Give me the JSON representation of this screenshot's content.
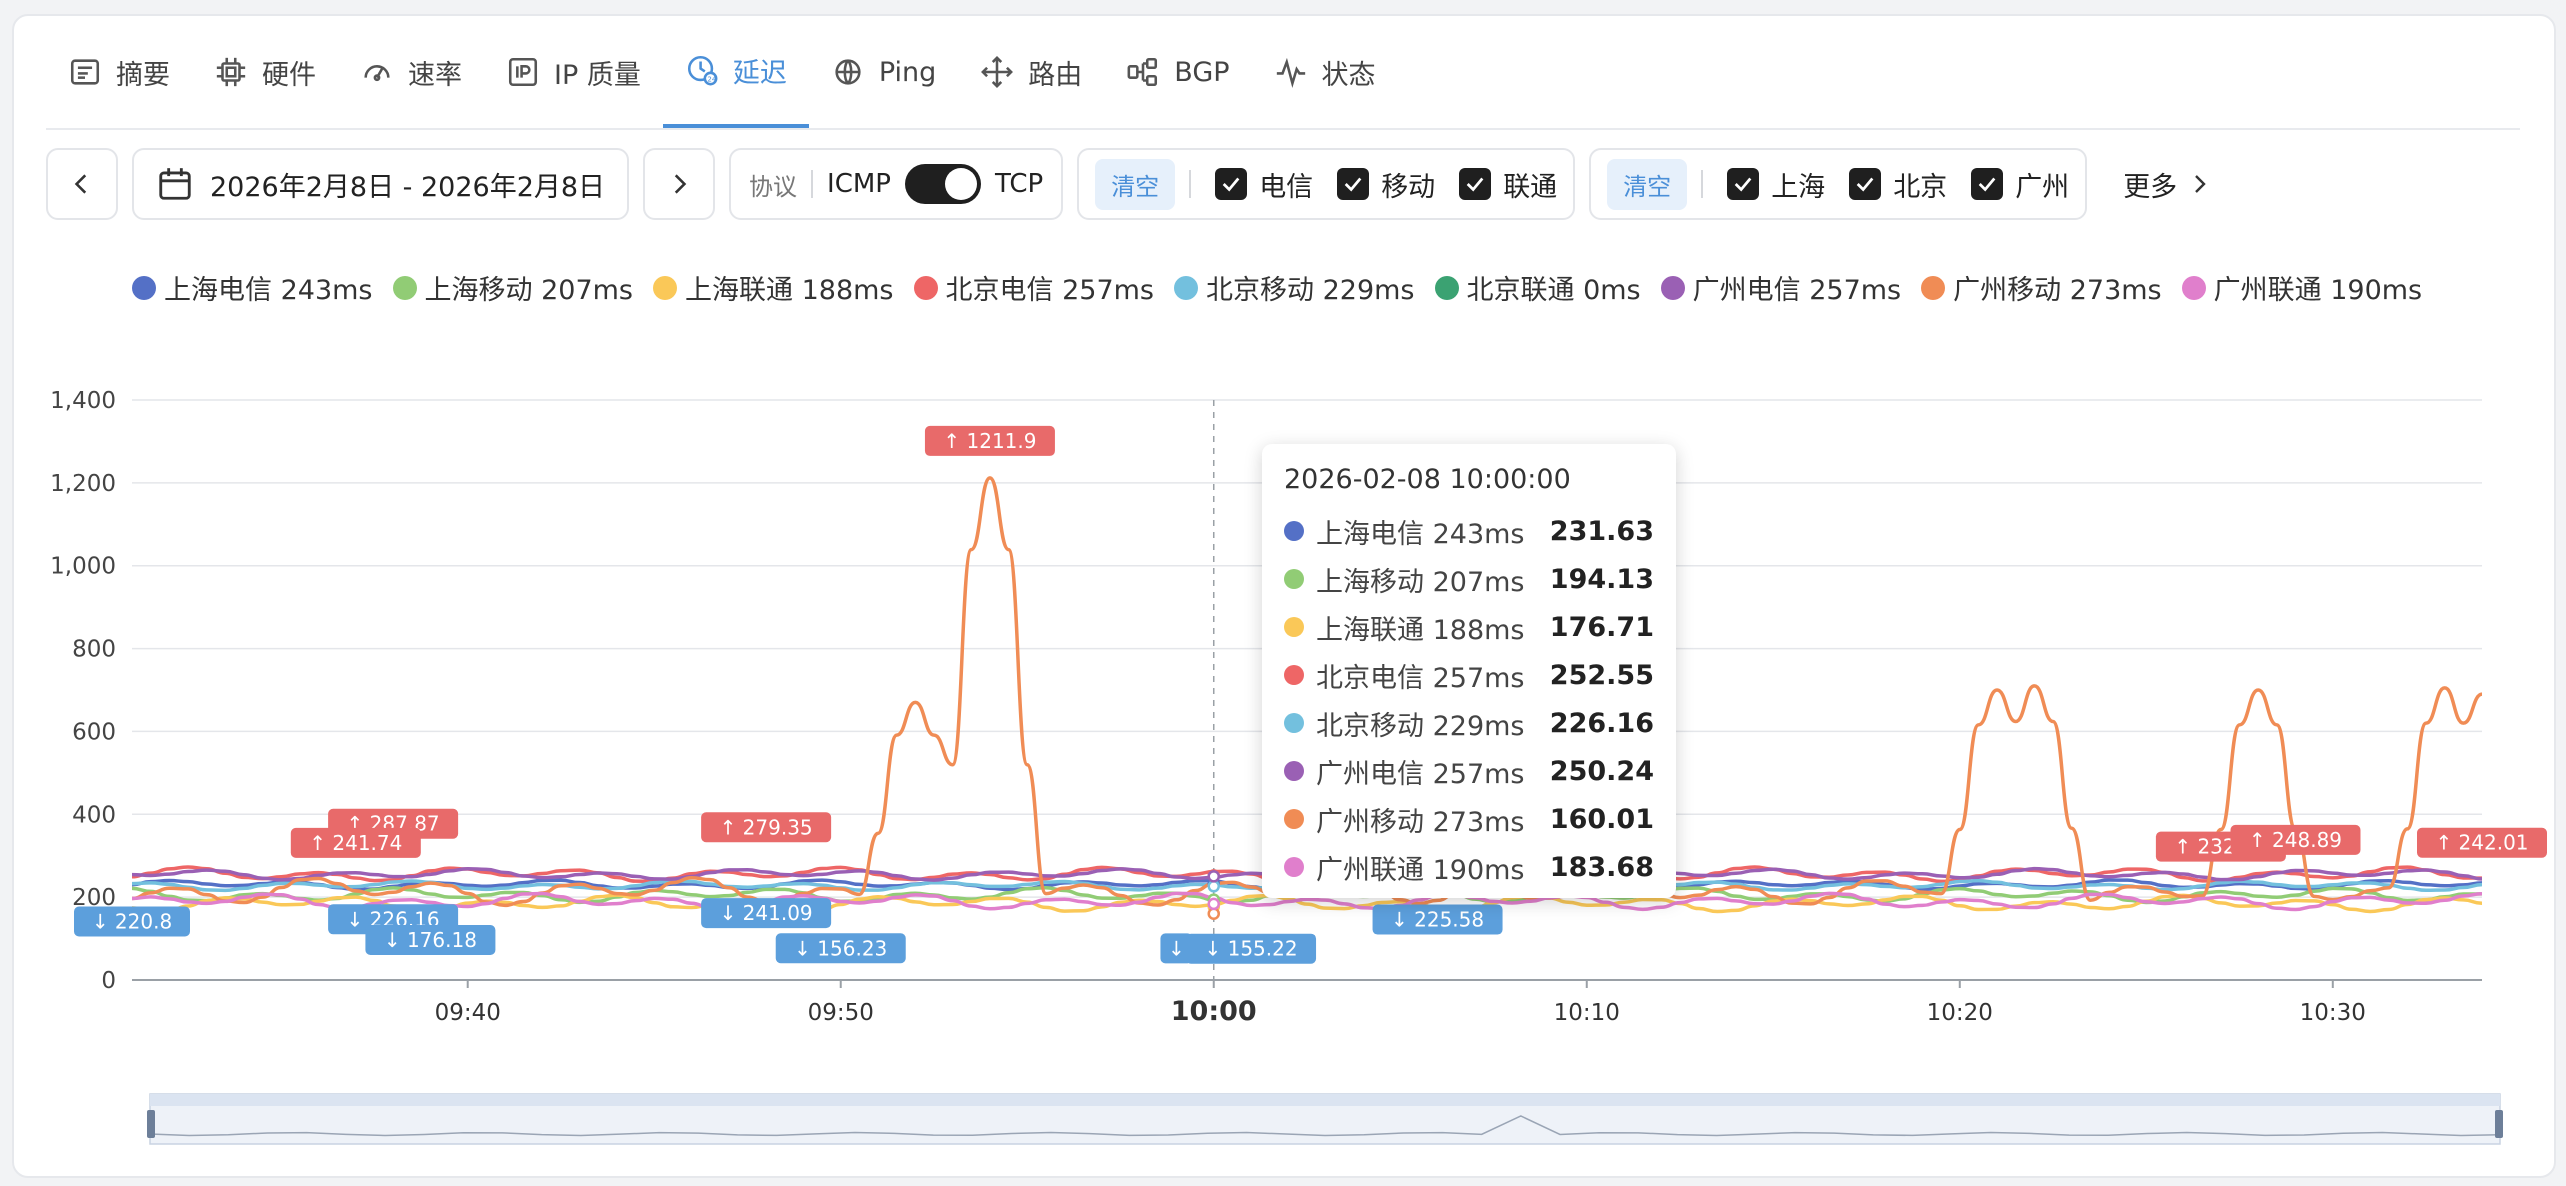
{
  "tabs": [
    {
      "label": "摘要",
      "icon": "summary-icon"
    },
    {
      "label": "硬件",
      "icon": "chip-icon"
    },
    {
      "label": "速率",
      "icon": "gauge-icon"
    },
    {
      "label": "IP 质量",
      "icon": "ip-icon"
    },
    {
      "label": "延迟",
      "icon": "latency-clock-icon",
      "active": true
    },
    {
      "label": "Ping",
      "icon": "globe-icon"
    },
    {
      "label": "路由",
      "icon": "route-arrows-icon"
    },
    {
      "label": "BGP",
      "icon": "bgp-nodes-icon"
    },
    {
      "label": "状态",
      "icon": "pulse-icon"
    }
  ],
  "filters": {
    "date_range": "2026年2月8日 - 2026年2月8日",
    "protocol_label": "协议",
    "protocol_left": "ICMP",
    "protocol_right": "TCP",
    "protocol_selected": "TCP",
    "clear_label": "清空",
    "isp_options": [
      "电信",
      "移动",
      "联通"
    ],
    "city_options": [
      "上海",
      "北京",
      "广州"
    ],
    "more_label": "更多"
  },
  "colors": {
    "accent": "#4a8fd8",
    "high_badge": "#e86a6a",
    "low_badge": "#5c9fdc"
  },
  "chart_data": {
    "type": "line",
    "x_ticks": [
      "09:40",
      "09:50",
      "10:00",
      "10:10",
      "10:20",
      "10:30"
    ],
    "x_range": [
      "09:31",
      "10:34"
    ],
    "ylim": [
      0,
      1400
    ],
    "y_ticks": [
      "0",
      "200",
      "400",
      "600",
      "800",
      "1,000",
      "1,200",
      "1,400"
    ],
    "grid": true,
    "legend_position": "top",
    "series": [
      {
        "name": "上海电信 243ms",
        "color": "#5470c6",
        "base": 230,
        "amp": 12
      },
      {
        "name": "上海移动 207ms",
        "color": "#91cc75",
        "base": 205,
        "amp": 18
      },
      {
        "name": "上海联通 188ms",
        "color": "#fac858",
        "base": 185,
        "amp": 20
      },
      {
        "name": "北京电信 257ms",
        "color": "#ee6666",
        "base": 255,
        "amp": 18
      },
      {
        "name": "北京移动 229ms",
        "color": "#73c0de",
        "base": 228,
        "amp": 12
      },
      {
        "name": "北京联通 0ms",
        "color": "#3ba272",
        "base": 0,
        "amp": 0
      },
      {
        "name": "广州电信 257ms",
        "color": "#9a60b4",
        "base": 255,
        "amp": 14
      },
      {
        "name": "广州移动 273ms",
        "color": "#f08c55",
        "base": 215,
        "amp": 35,
        "spikes": [
          {
            "time": "09:52",
            "value": 670
          },
          {
            "time": "09:54",
            "value": 1211.9
          },
          {
            "time": "10:21",
            "value": 700
          },
          {
            "time": "10:22",
            "value": 710
          },
          {
            "time": "10:28",
            "value": 700
          },
          {
            "time": "10:33",
            "value": 705
          },
          {
            "time": "10:34",
            "value": 690
          }
        ]
      },
      {
        "name": "广州联通 190ms",
        "color": "#e07fcc",
        "base": 190,
        "amp": 20
      }
    ],
    "high_markers": [
      {
        "label": "↑ 1211.9",
        "time": "09:54",
        "value": 1211.9
      },
      {
        "label": "↑ 287.87",
        "time": "09:38",
        "value": 287.87
      },
      {
        "label": "↑ 241.74",
        "time": "09:37",
        "value": 241.74
      },
      {
        "label": "↑ 279.35",
        "time": "09:48",
        "value": 279.35
      },
      {
        "label": "↑ 232.64",
        "time": "10:27",
        "value": 232.64
      },
      {
        "label": "↑ 248.89",
        "time": "10:29",
        "value": 248.89
      },
      {
        "label": "↑ 242.01",
        "time": "10:34",
        "value": 242.01
      }
    ],
    "low_markers": [
      {
        "label": "↓ 220.8",
        "time": "09:31",
        "value": 220.8
      },
      {
        "label": "↓ 226.16",
        "time": "09:38",
        "value": 226.16
      },
      {
        "label": "↓ 176.18",
        "time": "09:39",
        "value": 176.18
      },
      {
        "label": "↓ 241.09",
        "time": "09:48",
        "value": 241.09
      },
      {
        "label": "↓ 156.23",
        "time": "09:50",
        "value": 156.23
      },
      {
        "label": "↓",
        "time": "09:59",
        "value": 156
      },
      {
        "label": "↓ 155.22",
        "time": "10:01",
        "value": 155.22
      },
      {
        "label": "↓ 225.58",
        "time": "10:06",
        "value": 225.58
      }
    ],
    "crosshair_time": "10:00",
    "tooltip": {
      "title": "2026-02-08 10:00:00",
      "rows": [
        {
          "name": "上海电信 243ms",
          "value": "231.63",
          "color": "#5470c6"
        },
        {
          "name": "上海移动 207ms",
          "value": "194.13",
          "color": "#91cc75"
        },
        {
          "name": "上海联通 188ms",
          "value": "176.71",
          "color": "#fac858"
        },
        {
          "name": "北京电信 257ms",
          "value": "252.55",
          "color": "#ee6666"
        },
        {
          "name": "北京移动 229ms",
          "value": "226.16",
          "color": "#73c0de"
        },
        {
          "name": "广州电信 257ms",
          "value": "250.24",
          "color": "#9a60b4"
        },
        {
          "name": "广州移动 273ms",
          "value": "160.01",
          "color": "#f08c55"
        },
        {
          "name": "广州联通 190ms",
          "value": "183.68",
          "color": "#e07fcc"
        }
      ]
    }
  }
}
